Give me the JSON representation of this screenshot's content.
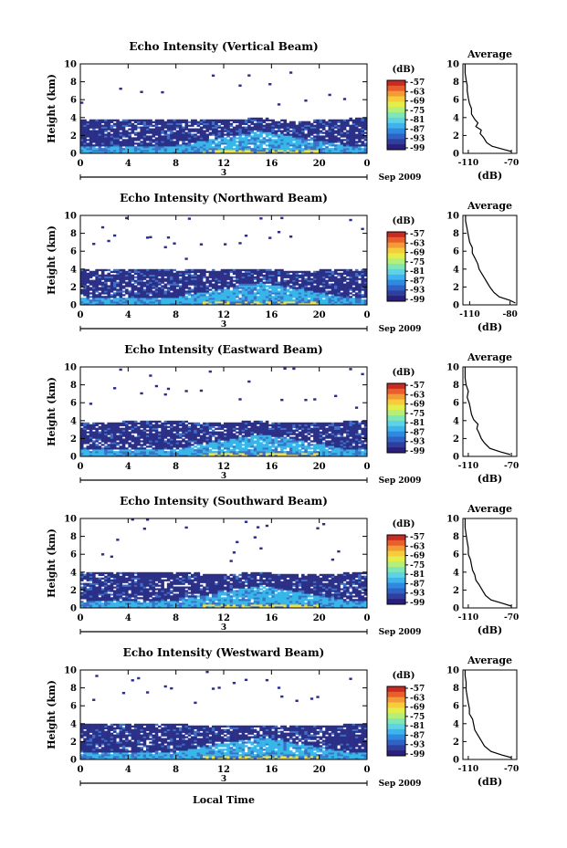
{
  "x_axis_label": "Local Time",
  "date_parts": {
    "day": "3",
    "month_year": "Sep 2009"
  },
  "colorbar": {
    "unit": "(dB)",
    "labels": [
      "-57",
      "-63",
      "-69",
      "-75",
      "-81",
      "-87",
      "-93",
      "-99"
    ],
    "colors": [
      "#2a1f7a",
      "#2f3f9e",
      "#2f62c4",
      "#2f89e0",
      "#3fb3ee",
      "#5fd3e6",
      "#7fe6b8",
      "#b4ef7a",
      "#e3ee4a",
      "#f6cc3a",
      "#f49a36",
      "#ea5e2e",
      "#c82a24"
    ]
  },
  "avg_labels": {
    "title": "Average",
    "unit": "(dB)"
  },
  "colors": {
    "navy": "#2b2f86",
    "cyan": "#35b7e8",
    "yellow": "#f0e04a",
    "frame": "#000000"
  },
  "chart_data": [
    {
      "type": "heatmap",
      "title": "Echo Intensity (Vertical Beam)",
      "ylabel": "Height (km)",
      "xlabel": "Local Time",
      "x_ticks": [
        "0",
        "4",
        "8",
        "12",
        "16",
        "20",
        "0"
      ],
      "y_ticks": [
        "0",
        "2",
        "4",
        "6",
        "8",
        "10"
      ],
      "xlim": [
        0,
        24
      ],
      "ylim": [
        0,
        10
      ],
      "grid": false,
      "layer_top_km_by_hour": [
        [
          0,
          3.6
        ],
        [
          6,
          3.8
        ],
        [
          12,
          3.6
        ],
        [
          15,
          3.9
        ],
        [
          18,
          3.5
        ],
        [
          24,
          3.9
        ]
      ],
      "average_profile": {
        "xlabel": "(dB)",
        "x_ticks": [
          "-110",
          "-70"
        ],
        "y_ticks": [
          "0",
          "2",
          "4",
          "6",
          "8",
          "10"
        ],
        "xlim": [
          -115,
          -65
        ],
        "ylim": [
          0,
          10
        ],
        "points": [
          [
            -70,
            0.2
          ],
          [
            -76,
            0.4
          ],
          [
            -88,
            0.8
          ],
          [
            -93,
            1.2
          ],
          [
            -96,
            1.8
          ],
          [
            -99,
            2.2
          ],
          [
            -98,
            2.6
          ],
          [
            -103,
            3.0
          ],
          [
            -101,
            3.4
          ],
          [
            -104,
            3.8
          ],
          [
            -107,
            4.4
          ],
          [
            -107,
            5.0
          ],
          [
            -109,
            5.6
          ],
          [
            -110,
            6.2
          ],
          [
            -111,
            7.0
          ],
          [
            -111,
            7.6
          ],
          [
            -112,
            8.2
          ],
          [
            -113,
            9.0
          ],
          [
            -113,
            10.0
          ]
        ]
      }
    },
    {
      "type": "heatmap",
      "title": "Echo Intensity (Northward Beam)",
      "ylabel": "Height (km)",
      "xlabel": "Local Time",
      "x_ticks": [
        "0",
        "4",
        "8",
        "12",
        "16",
        "20",
        "0"
      ],
      "y_ticks": [
        "0",
        "2",
        "4",
        "6",
        "8",
        "10"
      ],
      "xlim": [
        0,
        24
      ],
      "ylim": [
        0,
        10
      ],
      "grid": false,
      "layer_top_km_by_hour": [
        [
          0,
          3.9
        ],
        [
          6,
          4.0
        ],
        [
          12,
          3.8
        ],
        [
          15,
          4.0
        ],
        [
          18,
          3.7
        ],
        [
          24,
          4.0
        ]
      ],
      "average_profile": {
        "xlabel": "(dB)",
        "x_ticks": [
          "-110",
          "-80"
        ],
        "y_ticks": [
          "0",
          "2",
          "4",
          "6",
          "8",
          "10"
        ],
        "xlim": [
          -115,
          -75
        ],
        "ylim": [
          0,
          10
        ],
        "points": [
          [
            -76,
            0.2
          ],
          [
            -80,
            0.5
          ],
          [
            -88,
            0.9
          ],
          [
            -92,
            1.4
          ],
          [
            -95,
            2.0
          ],
          [
            -97,
            2.5
          ],
          [
            -99,
            3.0
          ],
          [
            -101,
            3.5
          ],
          [
            -103,
            4.0
          ],
          [
            -104,
            4.6
          ],
          [
            -106,
            5.2
          ],
          [
            -108,
            5.8
          ],
          [
            -108,
            6.4
          ],
          [
            -110,
            7.0
          ],
          [
            -111,
            7.8
          ],
          [
            -112,
            8.6
          ],
          [
            -113,
            9.4
          ],
          [
            -113,
            10.0
          ]
        ]
      }
    },
    {
      "type": "heatmap",
      "title": "Echo Intensity (Eastward Beam)",
      "ylabel": "Height (km)",
      "xlabel": "Local Time",
      "x_ticks": [
        "0",
        "4",
        "8",
        "12",
        "16",
        "20",
        "0"
      ],
      "y_ticks": [
        "0",
        "2",
        "4",
        "6",
        "8",
        "10"
      ],
      "xlim": [
        0,
        24
      ],
      "ylim": [
        0,
        10
      ],
      "grid": false,
      "layer_top_km_by_hour": [
        [
          0,
          3.7
        ],
        [
          6,
          3.9
        ],
        [
          12,
          3.7
        ],
        [
          15,
          3.9
        ],
        [
          18,
          3.6
        ],
        [
          24,
          3.9
        ]
      ],
      "average_profile": {
        "xlabel": "(dB)",
        "x_ticks": [
          "-110",
          "-70"
        ],
        "y_ticks": [
          "0",
          "2",
          "4",
          "6",
          "8",
          "10"
        ],
        "xlim": [
          -115,
          -65
        ],
        "ylim": [
          0,
          10
        ],
        "points": [
          [
            -71,
            0.2
          ],
          [
            -80,
            0.5
          ],
          [
            -90,
            0.9
          ],
          [
            -95,
            1.5
          ],
          [
            -98,
            2.0
          ],
          [
            -100,
            2.6
          ],
          [
            -102,
            3.1
          ],
          [
            -101,
            3.6
          ],
          [
            -105,
            4.1
          ],
          [
            -107,
            4.7
          ],
          [
            -108,
            5.3
          ],
          [
            -109,
            5.9
          ],
          [
            -111,
            6.6
          ],
          [
            -110,
            7.3
          ],
          [
            -112,
            8.0
          ],
          [
            -113,
            8.8
          ],
          [
            -113,
            10.0
          ]
        ]
      }
    },
    {
      "type": "heatmap",
      "title": "Echo Intensity (Southward Beam)",
      "ylabel": "Height (km)",
      "xlabel": "Local Time",
      "x_ticks": [
        "0",
        "4",
        "8",
        "12",
        "16",
        "20",
        "0"
      ],
      "y_ticks": [
        "0",
        "2",
        "4",
        "6",
        "8",
        "10"
      ],
      "xlim": [
        0,
        24
      ],
      "ylim": [
        0,
        10
      ],
      "grid": false,
      "layer_top_km_by_hour": [
        [
          0,
          3.8
        ],
        [
          6,
          4.0
        ],
        [
          12,
          3.7
        ],
        [
          15,
          3.9
        ],
        [
          18,
          3.6
        ],
        [
          24,
          3.9
        ]
      ],
      "average_profile": {
        "xlabel": "(dB)",
        "x_ticks": [
          "-110",
          "-70"
        ],
        "y_ticks": [
          "0",
          "2",
          "4",
          "6",
          "8",
          "10"
        ],
        "xlim": [
          -115,
          -65
        ],
        "ylim": [
          0,
          10
        ],
        "points": [
          [
            -70,
            0.2
          ],
          [
            -78,
            0.5
          ],
          [
            -89,
            0.9
          ],
          [
            -94,
            1.4
          ],
          [
            -97,
            2.0
          ],
          [
            -100,
            2.6
          ],
          [
            -103,
            3.1
          ],
          [
            -104,
            3.7
          ],
          [
            -106,
            4.2
          ],
          [
            -107,
            4.8
          ],
          [
            -108,
            5.4
          ],
          [
            -110,
            6.0
          ],
          [
            -110,
            6.7
          ],
          [
            -111,
            7.4
          ],
          [
            -112,
            8.2
          ],
          [
            -113,
            9.0
          ],
          [
            -113,
            10.0
          ]
        ]
      }
    },
    {
      "type": "heatmap",
      "title": "Echo Intensity (Westward Beam)",
      "ylabel": "Height (km)",
      "xlabel": "Local Time",
      "x_ticks": [
        "0",
        "4",
        "8",
        "12",
        "16",
        "20",
        "0"
      ],
      "y_ticks": [
        "0",
        "2",
        "4",
        "6",
        "8",
        "10"
      ],
      "xlim": [
        0,
        24
      ],
      "ylim": [
        0,
        10
      ],
      "grid": false,
      "layer_top_km_by_hour": [
        [
          0,
          3.8
        ],
        [
          6,
          4.0
        ],
        [
          12,
          3.6
        ],
        [
          15,
          3.8
        ],
        [
          18,
          3.6
        ],
        [
          24,
          3.9
        ]
      ],
      "average_profile": {
        "xlabel": "(dB)",
        "x_ticks": [
          "-110",
          "-70"
        ],
        "y_ticks": [
          "0",
          "2",
          "4",
          "6",
          "8",
          "10"
        ],
        "xlim": [
          -115,
          -65
        ],
        "ylim": [
          0,
          10
        ],
        "points": [
          [
            -70,
            0.2
          ],
          [
            -79,
            0.5
          ],
          [
            -89,
            0.9
          ],
          [
            -95,
            1.5
          ],
          [
            -98,
            2.1
          ],
          [
            -101,
            2.7
          ],
          [
            -104,
            3.3
          ],
          [
            -105,
            3.9
          ],
          [
            -106,
            4.5
          ],
          [
            -109,
            5.1
          ],
          [
            -109,
            5.7
          ],
          [
            -110,
            6.3
          ],
          [
            -111,
            7.0
          ],
          [
            -112,
            7.8
          ],
          [
            -112,
            8.6
          ],
          [
            -113,
            9.4
          ],
          [
            -113,
            10.0
          ]
        ]
      }
    }
  ]
}
